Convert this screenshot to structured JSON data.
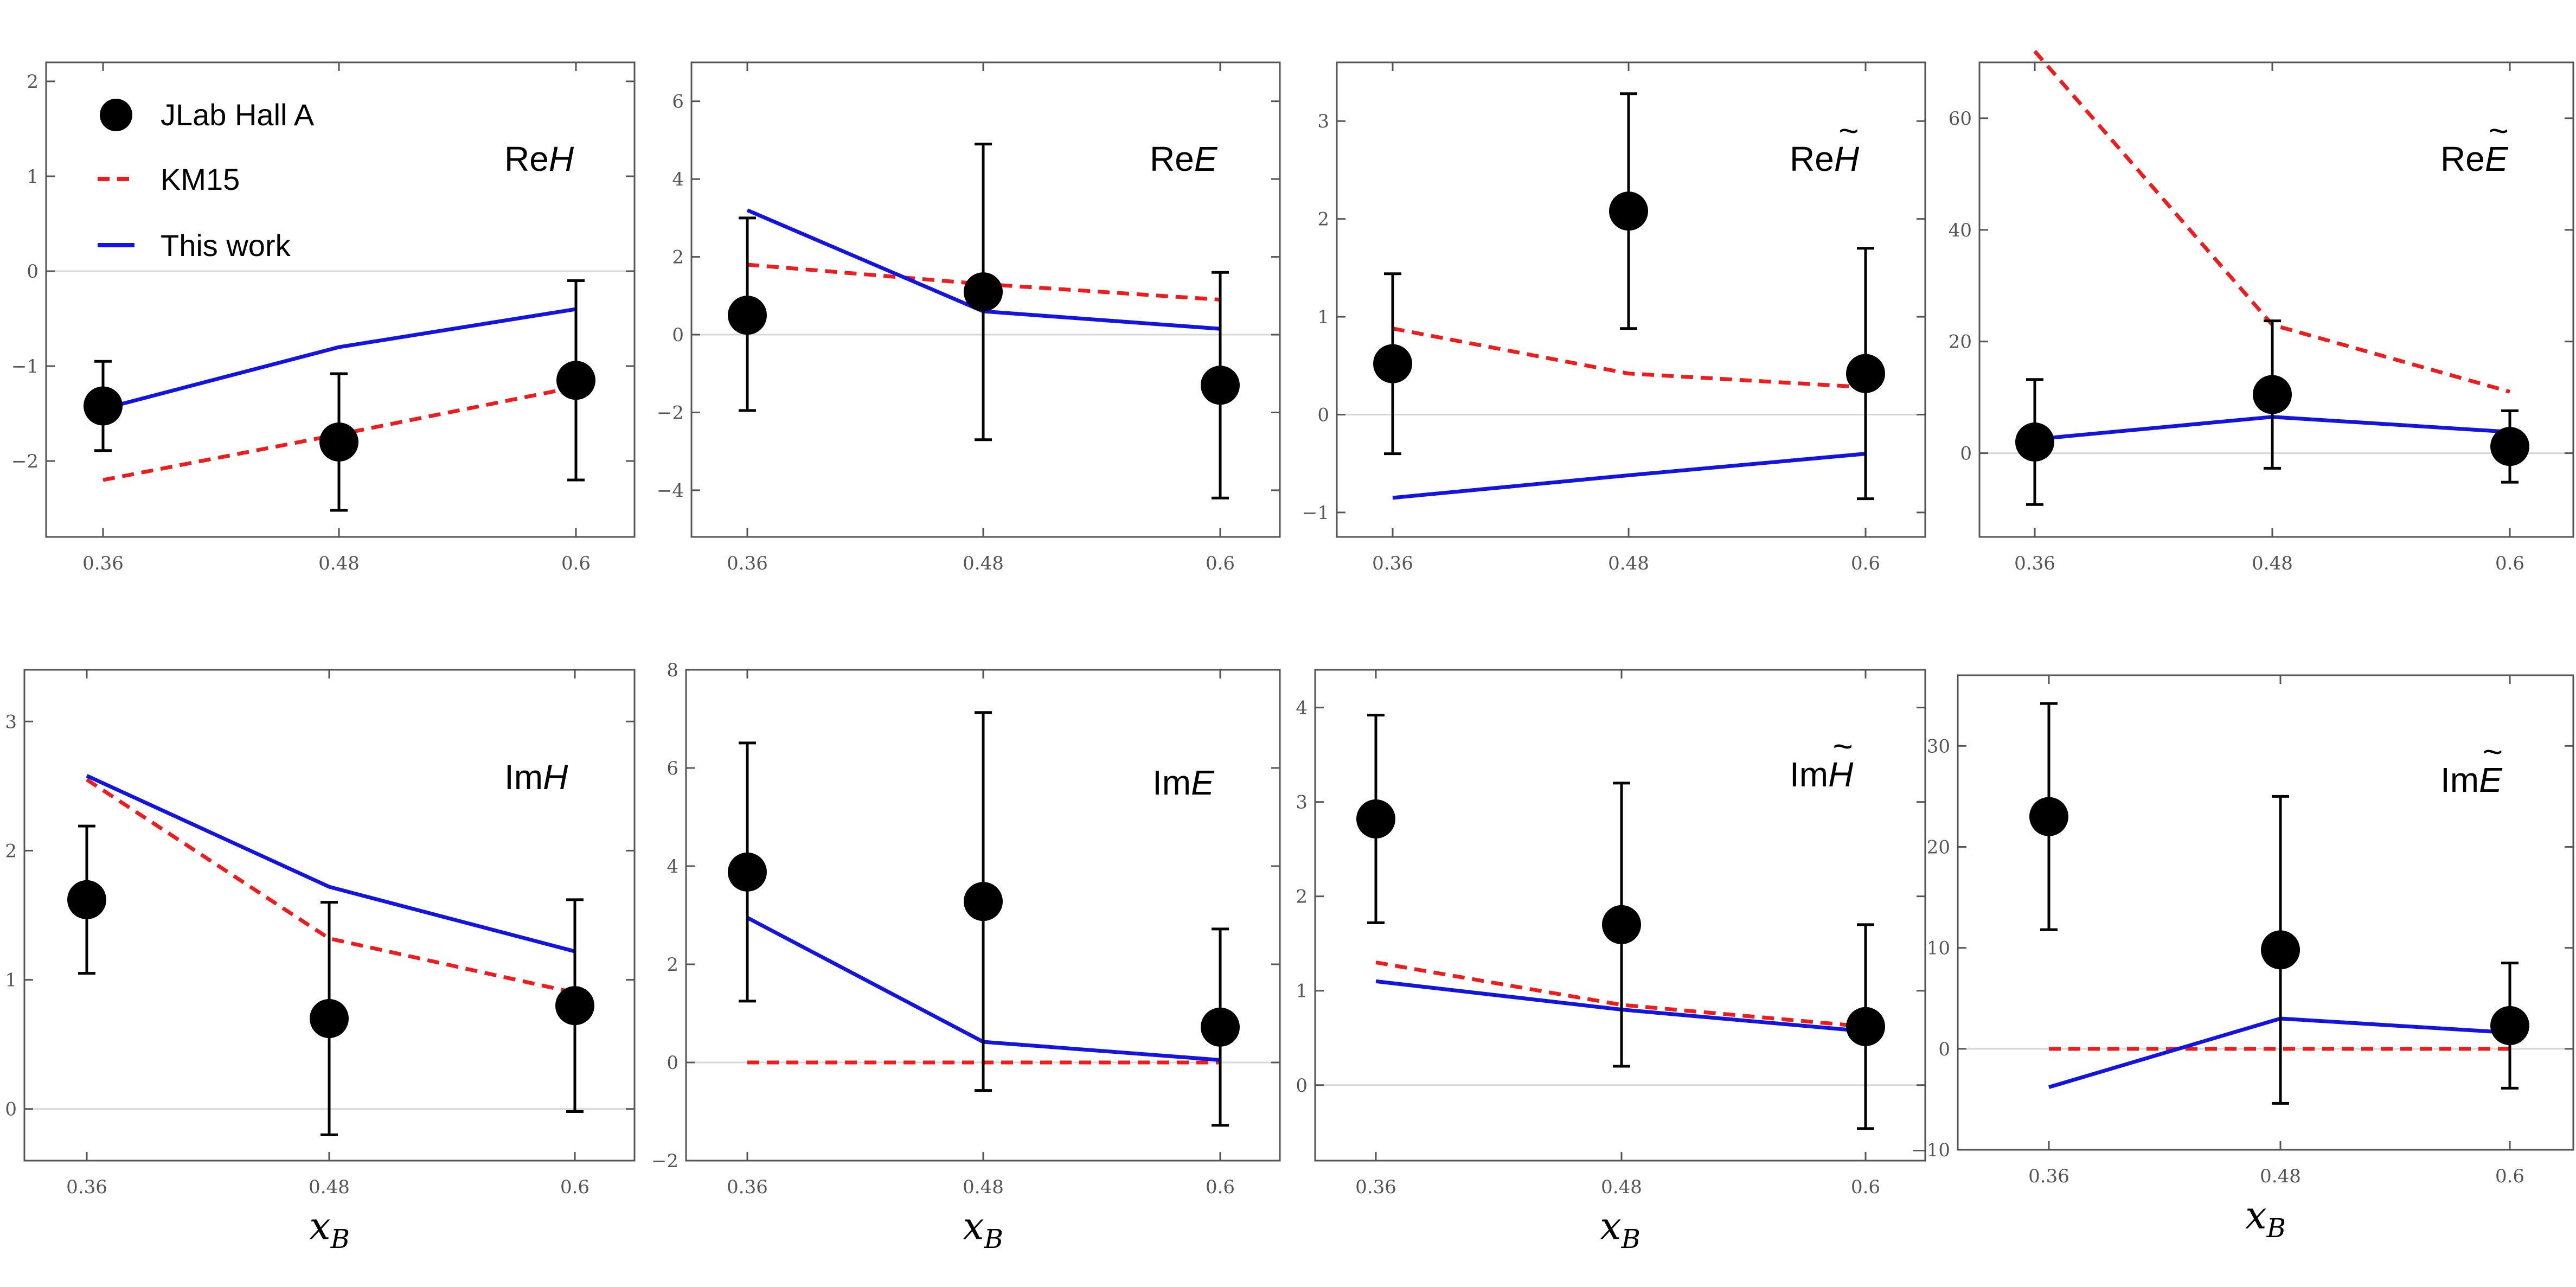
{
  "chart_data": [
    {
      "type": "line",
      "name": "ReH",
      "label_prefix": "Re",
      "label_symbol": "H",
      "label_accent": "",
      "categories": [
        "0.36",
        "0.48",
        "0.6"
      ],
      "x": [
        0.36,
        0.48,
        0.6
      ],
      "ylim": [
        -2.8,
        2.2
      ],
      "yticks": [
        -2,
        -1,
        0,
        1,
        2
      ],
      "ytick_labels": [
        "−2",
        "−1",
        "0",
        "1",
        "2"
      ],
      "data_points": {
        "y": [
          -1.42,
          -1.8,
          -1.15
        ],
        "err_low": [
          0.47,
          0.72,
          1.05
        ],
        "err_high": [
          0.47,
          0.72,
          1.05
        ]
      },
      "series": [
        {
          "name": "KM15",
          "color": "#ee1c1c",
          "dashed": true,
          "values": [
            -2.2,
            -1.72,
            -1.22
          ]
        },
        {
          "name": "This work",
          "color": "#1414e0",
          "dashed": false,
          "values": [
            -1.45,
            -0.8,
            -0.4
          ]
        }
      ]
    },
    {
      "type": "line",
      "name": "ReE",
      "label_prefix": "Re",
      "label_symbol": "E",
      "label_accent": "",
      "categories": [
        "0.36",
        "0.48",
        "0.6"
      ],
      "x": [
        0.36,
        0.48,
        0.6
      ],
      "ylim": [
        -5.2,
        7
      ],
      "yticks": [
        -4,
        -2,
        0,
        2,
        4,
        6
      ],
      "ytick_labels": [
        "−4",
        "−2",
        "0",
        "2",
        "4",
        "6"
      ],
      "data_points": {
        "y": [
          0.5,
          1.1,
          -1.3
        ],
        "err_low": [
          2.45,
          3.8,
          2.9
        ],
        "err_high": [
          2.5,
          3.8,
          2.9
        ]
      },
      "series": [
        {
          "name": "KM15",
          "color": "#ee1c1c",
          "dashed": true,
          "values": [
            1.8,
            1.3,
            0.9
          ]
        },
        {
          "name": "This work",
          "color": "#1414e0",
          "dashed": false,
          "values": [
            3.2,
            0.6,
            0.15
          ]
        }
      ]
    },
    {
      "type": "line",
      "name": "ReHtilde",
      "label_prefix": "Re",
      "label_symbol": "H",
      "label_accent": "~",
      "categories": [
        "0.36",
        "0.48",
        "0.6"
      ],
      "x": [
        0.36,
        0.48,
        0.6
      ],
      "ylim": [
        -1.25,
        3.6
      ],
      "yticks": [
        -1,
        0,
        1,
        2,
        3
      ],
      "ytick_labels": [
        "−1",
        "0",
        "1",
        "2",
        "3"
      ],
      "data_points": {
        "y": [
          0.52,
          2.08,
          0.42
        ],
        "err_low": [
          0.92,
          1.2,
          1.28
        ],
        "err_high": [
          0.92,
          1.2,
          1.28
        ]
      },
      "series": [
        {
          "name": "KM15",
          "color": "#ee1c1c",
          "dashed": true,
          "values": [
            0.88,
            0.42,
            0.28
          ]
        },
        {
          "name": "This work",
          "color": "#1414e0",
          "dashed": false,
          "values": [
            -0.85,
            -0.62,
            -0.4
          ]
        }
      ]
    },
    {
      "type": "line",
      "name": "ReEtilde",
      "label_prefix": "Re",
      "label_symbol": "E",
      "label_accent": "~",
      "categories": [
        "0.36",
        "0.48",
        "0.6"
      ],
      "x": [
        0.36,
        0.48,
        0.6
      ],
      "ylim": [
        -15,
        70
      ],
      "yticks": [
        0,
        20,
        40,
        60
      ],
      "ytick_labels": [
        "0",
        "20",
        "40",
        "60"
      ],
      "data_points": {
        "y": [
          2,
          10.5,
          1.2
        ],
        "err_low": [
          11.2,
          13.2,
          6.4
        ],
        "err_high": [
          11.2,
          13.2,
          6.4
        ]
      },
      "series": [
        {
          "name": "KM15",
          "color": "#ee1c1c",
          "dashed": true,
          "values": [
            72,
            23,
            11
          ]
        },
        {
          "name": "This work",
          "color": "#1414e0",
          "dashed": false,
          "values": [
            2.5,
            6.5,
            3.8
          ]
        }
      ]
    },
    {
      "type": "line",
      "name": "ImH",
      "label_prefix": "Im",
      "label_symbol": "H",
      "label_accent": "",
      "categories": [
        "0.36",
        "0.48",
        "0.6"
      ],
      "x": [
        0.36,
        0.48,
        0.6
      ],
      "ylim": [
        -0.4,
        3.4
      ],
      "yticks": [
        0,
        1,
        2,
        3
      ],
      "ytick_labels": [
        "0",
        "1",
        "2",
        "3"
      ],
      "data_points": {
        "y": [
          1.62,
          0.7,
          0.8
        ],
        "err_low": [
          0.57,
          0.9,
          0.82
        ],
        "err_high": [
          0.57,
          0.9,
          0.82
        ]
      },
      "series": [
        {
          "name": "KM15",
          "color": "#ee1c1c",
          "dashed": true,
          "values": [
            2.55,
            1.32,
            0.9
          ]
        },
        {
          "name": "This work",
          "color": "#1414e0",
          "dashed": false,
          "values": [
            2.58,
            1.72,
            1.22
          ]
        }
      ]
    },
    {
      "type": "line",
      "name": "ImE",
      "label_prefix": "Im",
      "label_symbol": "E",
      "label_accent": "",
      "categories": [
        "0.36",
        "0.48",
        "0.6"
      ],
      "x": [
        0.36,
        0.48,
        0.6
      ],
      "ylim": [
        -2,
        8
      ],
      "yticks": [
        -2,
        0,
        2,
        4,
        6,
        8
      ],
      "ytick_labels": [
        "−2",
        "0",
        "2",
        "4",
        "6",
        "8"
      ],
      "data_points": {
        "y": [
          3.88,
          3.28,
          0.72
        ],
        "err_low": [
          2.63,
          3.85,
          2.0
        ],
        "err_high": [
          2.63,
          3.85,
          2.0
        ]
      },
      "series": [
        {
          "name": "KM15",
          "color": "#ee1c1c",
          "dashed": true,
          "values": [
            0,
            0,
            0
          ]
        },
        {
          "name": "This work",
          "color": "#1414e0",
          "dashed": false,
          "values": [
            2.95,
            0.42,
            0.05
          ]
        }
      ]
    },
    {
      "type": "line",
      "name": "ImHtilde",
      "label_prefix": "Im",
      "label_symbol": "H",
      "label_accent": "~",
      "categories": [
        "0.36",
        "0.48",
        "0.6"
      ],
      "x": [
        0.36,
        0.48,
        0.6
      ],
      "ylim": [
        -0.8,
        4.4
      ],
      "yticks": [
        0,
        1,
        2,
        3,
        4
      ],
      "ytick_labels": [
        "0",
        "1",
        "2",
        "3",
        "4"
      ],
      "data_points": {
        "y": [
          2.82,
          1.7,
          0.62
        ],
        "err_low": [
          1.1,
          1.5,
          1.08
        ],
        "err_high": [
          1.1,
          1.5,
          1.08
        ]
      },
      "series": [
        {
          "name": "KM15",
          "color": "#ee1c1c",
          "dashed": true,
          "values": [
            1.3,
            0.85,
            0.62
          ]
        },
        {
          "name": "This work",
          "color": "#1414e0",
          "dashed": false,
          "values": [
            1.1,
            0.8,
            0.57
          ]
        }
      ]
    },
    {
      "type": "line",
      "name": "ImEtilde",
      "label_prefix": "Im",
      "label_symbol": "E",
      "label_accent": "~",
      "categories": [
        "0.36",
        "0.48",
        "0.6"
      ],
      "x": [
        0.36,
        0.48,
        0.6
      ],
      "ylim": [
        -10,
        37
      ],
      "yticks": [
        -10,
        0,
        10,
        20,
        30
      ],
      "ytick_labels": [
        "−10",
        "0",
        "10",
        "20",
        "30"
      ],
      "data_points": {
        "y": [
          23,
          9.8,
          2.3
        ],
        "err_low": [
          11.2,
          15.2,
          6.2
        ],
        "err_high": [
          11.2,
          15.2,
          6.2
        ]
      },
      "series": [
        {
          "name": "KM15",
          "color": "#ee1c1c",
          "dashed": true,
          "values": [
            0,
            0,
            0
          ]
        },
        {
          "name": "This work",
          "color": "#1414e0",
          "dashed": false,
          "values": [
            -3.8,
            3,
            1.6
          ]
        }
      ]
    }
  ],
  "legend": {
    "items": [
      {
        "label": "JLab Hall A",
        "kind": "marker"
      },
      {
        "label": "KM15",
        "kind": "dashed"
      },
      {
        "label": "This work",
        "kind": "solid"
      }
    ]
  },
  "xlabel": {
    "main": "x",
    "sub": "B"
  },
  "colors": {
    "km15": "#ee1c1c",
    "this_work": "#1414e0",
    "data": "#000000",
    "frame": "#555555",
    "zero_line": "#d8d8d8"
  }
}
